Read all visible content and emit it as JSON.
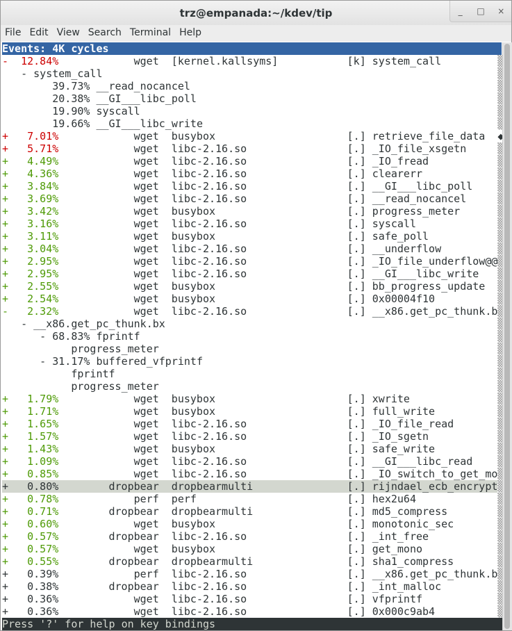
{
  "window": {
    "title": "trz@empanada:~/kdev/tip",
    "buttons": [
      "_",
      "□",
      "×"
    ]
  },
  "menubar": [
    "File",
    "Edit",
    "View",
    "Search",
    "Terminal",
    "Help"
  ],
  "header": "Events: 4K cycles",
  "status": "Press '?' for help on key bindings",
  "colors": {
    "high": "#cc0000",
    "mid": "#4e9a06",
    "low": "#2e3436",
    "header_bg": "#3465a4",
    "selected_bg": "#d3d7cf"
  },
  "rows": [
    {
      "type": "entry",
      "sign": "-",
      "percent": "12.84%",
      "command": "wget",
      "dso": "[kernel.kallsyms]",
      "level": "[k]",
      "symbol": "system_call",
      "color": "red"
    },
    {
      "type": "chain",
      "depth": 0,
      "marker": "-",
      "text": "system_call"
    },
    {
      "type": "chain",
      "depth": 1,
      "marker": "",
      "text": "39.73% __read_nocancel"
    },
    {
      "type": "chain",
      "depth": 1,
      "marker": "",
      "text": "20.38% __GI___libc_poll"
    },
    {
      "type": "chain",
      "depth": 1,
      "marker": "",
      "text": "19.90% syscall"
    },
    {
      "type": "chain",
      "depth": 1,
      "marker": "",
      "text": "19.66% __GI___libc_write"
    },
    {
      "type": "entry",
      "sign": "+",
      "percent": "7.01%",
      "command": "wget",
      "dso": "busybox",
      "level": "[.]",
      "symbol": "retrieve_file_data",
      "color": "red",
      "scroll_mark": "◆"
    },
    {
      "type": "entry",
      "sign": "+",
      "percent": "5.71%",
      "command": "wget",
      "dso": "libc-2.16.so",
      "level": "[.]",
      "symbol": "_IO_file_xsgetn",
      "color": "red"
    },
    {
      "type": "entry",
      "sign": "+",
      "percent": "4.49%",
      "command": "wget",
      "dso": "libc-2.16.so",
      "level": "[.]",
      "symbol": "_IO_fread",
      "color": "green"
    },
    {
      "type": "entry",
      "sign": "+",
      "percent": "4.36%",
      "command": "wget",
      "dso": "libc-2.16.so",
      "level": "[.]",
      "symbol": "clearerr",
      "color": "green"
    },
    {
      "type": "entry",
      "sign": "+",
      "percent": "3.84%",
      "command": "wget",
      "dso": "libc-2.16.so",
      "level": "[.]",
      "symbol": "__GI___libc_poll",
      "color": "green"
    },
    {
      "type": "entry",
      "sign": "+",
      "percent": "3.69%",
      "command": "wget",
      "dso": "libc-2.16.so",
      "level": "[.]",
      "symbol": "__read_nocancel",
      "color": "green"
    },
    {
      "type": "entry",
      "sign": "+",
      "percent": "3.42%",
      "command": "wget",
      "dso": "busybox",
      "level": "[.]",
      "symbol": "progress_meter",
      "color": "green"
    },
    {
      "type": "entry",
      "sign": "+",
      "percent": "3.16%",
      "command": "wget",
      "dso": "libc-2.16.so",
      "level": "[.]",
      "symbol": "syscall",
      "color": "green"
    },
    {
      "type": "entry",
      "sign": "+",
      "percent": "3.11%",
      "command": "wget",
      "dso": "busybox",
      "level": "[.]",
      "symbol": "safe_poll",
      "color": "green"
    },
    {
      "type": "entry",
      "sign": "+",
      "percent": "3.04%",
      "command": "wget",
      "dso": "libc-2.16.so",
      "level": "[.]",
      "symbol": "__underflow",
      "color": "green"
    },
    {
      "type": "entry",
      "sign": "+",
      "percent": "2.95%",
      "command": "wget",
      "dso": "libc-2.16.so",
      "level": "[.]",
      "symbol": "_IO_file_underflow@@",
      "color": "green"
    },
    {
      "type": "entry",
      "sign": "+",
      "percent": "2.95%",
      "command": "wget",
      "dso": "libc-2.16.so",
      "level": "[.]",
      "symbol": "__GI___libc_write",
      "color": "green"
    },
    {
      "type": "entry",
      "sign": "+",
      "percent": "2.55%",
      "command": "wget",
      "dso": "busybox",
      "level": "[.]",
      "symbol": "bb_progress_update",
      "color": "green"
    },
    {
      "type": "entry",
      "sign": "+",
      "percent": "2.54%",
      "command": "wget",
      "dso": "busybox",
      "level": "[.]",
      "symbol": "0x00004f10",
      "color": "green"
    },
    {
      "type": "entry",
      "sign": "-",
      "percent": "2.32%",
      "command": "wget",
      "dso": "libc-2.16.so",
      "level": "[.]",
      "symbol": "__x86.get_pc_thunk.b",
      "color": "green"
    },
    {
      "type": "chain",
      "depth": 0,
      "marker": "-",
      "text": "__x86.get_pc_thunk.bx"
    },
    {
      "type": "chain",
      "depth": 1,
      "marker": "-",
      "text": "68.83% fprintf"
    },
    {
      "type": "chain",
      "depth": 2,
      "marker": "",
      "text": "progress_meter"
    },
    {
      "type": "chain",
      "depth": 1,
      "marker": "-",
      "text": "31.17% buffered_vfprintf"
    },
    {
      "type": "chain",
      "depth": 2,
      "marker": "",
      "text": "fprintf"
    },
    {
      "type": "chain",
      "depth": 2,
      "marker": "",
      "text": "progress_meter"
    },
    {
      "type": "entry",
      "sign": "+",
      "percent": "1.79%",
      "command": "wget",
      "dso": "busybox",
      "level": "[.]",
      "symbol": "xwrite",
      "color": "green"
    },
    {
      "type": "entry",
      "sign": "+",
      "percent": "1.71%",
      "command": "wget",
      "dso": "busybox",
      "level": "[.]",
      "symbol": "full_write",
      "color": "green"
    },
    {
      "type": "entry",
      "sign": "+",
      "percent": "1.65%",
      "command": "wget",
      "dso": "libc-2.16.so",
      "level": "[.]",
      "symbol": "_IO_file_read",
      "color": "green"
    },
    {
      "type": "entry",
      "sign": "+",
      "percent": "1.57%",
      "command": "wget",
      "dso": "libc-2.16.so",
      "level": "[.]",
      "symbol": "_IO_sgetn",
      "color": "green"
    },
    {
      "type": "entry",
      "sign": "+",
      "percent": "1.43%",
      "command": "wget",
      "dso": "busybox",
      "level": "[.]",
      "symbol": "safe_write",
      "color": "green"
    },
    {
      "type": "entry",
      "sign": "+",
      "percent": "1.09%",
      "command": "wget",
      "dso": "libc-2.16.so",
      "level": "[.]",
      "symbol": "__GI___libc_read",
      "color": "green"
    },
    {
      "type": "entry",
      "sign": "+",
      "percent": "0.85%",
      "command": "wget",
      "dso": "libc-2.16.so",
      "level": "[.]",
      "symbol": "_IO_switch_to_get_mo",
      "color": "green"
    },
    {
      "type": "entry",
      "sign": "+",
      "percent": "0.80%",
      "command": "dropbear",
      "dso": "dropbearmulti",
      "level": "[.]",
      "symbol": "rijndael_ecb_encrypt",
      "color": "low",
      "selected": true
    },
    {
      "type": "entry",
      "sign": "+",
      "percent": "0.78%",
      "command": "perf",
      "dso": "perf",
      "level": "[.]",
      "symbol": "hex2u64",
      "color": "green"
    },
    {
      "type": "entry",
      "sign": "+",
      "percent": "0.71%",
      "command": "dropbear",
      "dso": "dropbearmulti",
      "level": "[.]",
      "symbol": "md5_compress",
      "color": "green"
    },
    {
      "type": "entry",
      "sign": "+",
      "percent": "0.60%",
      "command": "wget",
      "dso": "busybox",
      "level": "[.]",
      "symbol": "monotonic_sec",
      "color": "green"
    },
    {
      "type": "entry",
      "sign": "+",
      "percent": "0.57%",
      "command": "dropbear",
      "dso": "libc-2.16.so",
      "level": "[.]",
      "symbol": "_int_free",
      "color": "green"
    },
    {
      "type": "entry",
      "sign": "+",
      "percent": "0.57%",
      "command": "wget",
      "dso": "busybox",
      "level": "[.]",
      "symbol": "get_mono",
      "color": "green"
    },
    {
      "type": "entry",
      "sign": "+",
      "percent": "0.55%",
      "command": "dropbear",
      "dso": "dropbearmulti",
      "level": "[.]",
      "symbol": "sha1_compress",
      "color": "green"
    },
    {
      "type": "entry",
      "sign": "+",
      "percent": "0.39%",
      "command": "perf",
      "dso": "libc-2.16.so",
      "level": "[.]",
      "symbol": "__x86.get_pc_thunk.b",
      "color": "low"
    },
    {
      "type": "entry",
      "sign": "+",
      "percent": "0.38%",
      "command": "dropbear",
      "dso": "libc-2.16.so",
      "level": "[.]",
      "symbol": "_int_malloc",
      "color": "low"
    },
    {
      "type": "entry",
      "sign": "+",
      "percent": "0.36%",
      "command": "wget",
      "dso": "libc-2.16.so",
      "level": "[.]",
      "symbol": "vfprintf",
      "color": "low"
    },
    {
      "type": "entry",
      "sign": "+",
      "percent": "0.36%",
      "command": "wget",
      "dso": "libc-2.16.so",
      "level": "[.]",
      "symbol": "0x000c9ab4",
      "color": "low"
    }
  ],
  "scroll_mark": "▒"
}
